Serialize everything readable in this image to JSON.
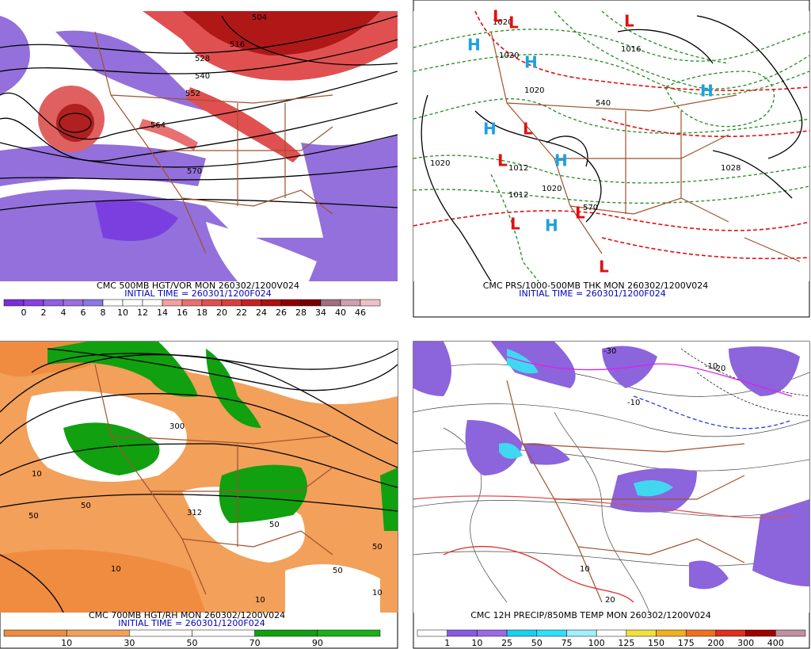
{
  "panels": [
    {
      "title": "CMC 500MB HGT/VOR MON 260302/1200V024",
      "initial_time": "INITIAL TIME = 260301/1200F024",
      "colorbar": {
        "levels": [
          0,
          2,
          4,
          6,
          8,
          10,
          12,
          14,
          16,
          18,
          20,
          22,
          24,
          26,
          28,
          34,
          40,
          46
        ],
        "colors": [
          "#7b2fd8",
          "#8a3fe0",
          "#9060e0",
          "#9b6ee0",
          "#8c78e0",
          "#ffffff",
          "#ffffff",
          "#ffffff",
          "#f2a0a0",
          "#e87070",
          "#e05050",
          "#d84040",
          "#c82020",
          "#b01010",
          "#900000",
          "#7a0000",
          "#a07080",
          "#d0a0b0",
          "#f0c0c8"
        ]
      },
      "contour_labels": [
        "504",
        "516",
        "528",
        "540",
        "552",
        "564",
        "570"
      ]
    },
    {
      "title": "CMC PRS/1000-500MB THK MON 260302/1200V024",
      "initial_time": "INITIAL TIME = 260301/1200F024",
      "contour_labels": [
        "1020",
        "1020",
        "1020",
        "1012",
        "1020",
        "1028",
        "1020",
        "1012",
        "540",
        "570",
        "1016"
      ],
      "centers": [
        "L",
        "L",
        "L",
        "H",
        "H",
        "H",
        "L",
        "L",
        "H",
        "L",
        "H",
        "H",
        "L",
        "L"
      ]
    },
    {
      "title": "CMC 700MB HGT/RH MON 260302/1200V024",
      "initial_time": "INITIAL TIME = 260301/1200F024",
      "colorbar": {
        "levels": [
          10,
          30,
          50,
          70,
          90
        ],
        "colors": [
          "#ef8c40",
          "#f2a05a",
          "#ffffff",
          "#ffffff",
          "#10a010",
          "#1ab01a"
        ]
      },
      "contour_labels": [
        "300",
        "10",
        "50",
        "50",
        "10",
        "50",
        "10",
        "50",
        "50",
        "10",
        "312"
      ]
    },
    {
      "title": "CMC 12H PRECIP/850MB TEMP MON 260302/1200V024",
      "colorbar": {
        "levels": [
          1,
          10,
          25,
          50,
          75,
          100,
          125,
          150,
          175,
          200,
          300,
          400
        ],
        "colors": [
          "#ffffff",
          "#8a5ae0",
          "#9a6ae8",
          "#18d0f0",
          "#30e0f8",
          "#a0f0ff",
          "#ffffff",
          "#f0e040",
          "#f0b020",
          "#f07020",
          "#e03020",
          "#a00000",
          "#c090a0"
        ]
      },
      "contour_labels": [
        "-30",
        "-10",
        "10",
        "20",
        "-10",
        "-20"
      ]
    }
  ]
}
